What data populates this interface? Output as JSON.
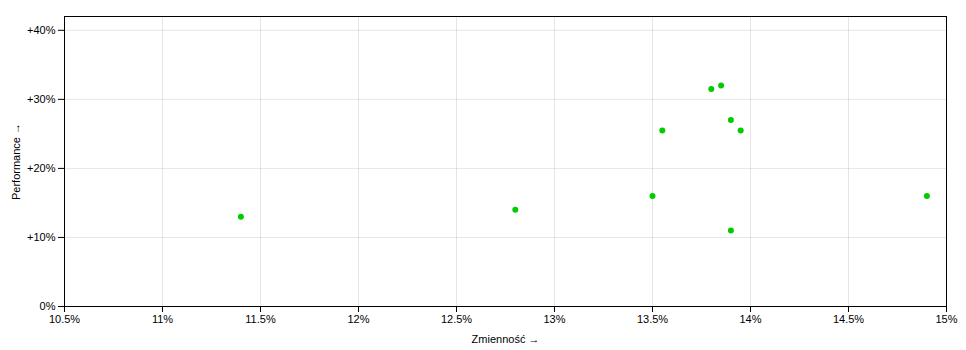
{
  "chart_data": {
    "type": "scatter",
    "x_label": "Zmienność",
    "y_label": "Performance",
    "x": [
      0.114,
      0.128,
      0.135,
      0.1355,
      0.138,
      0.1385,
      0.139,
      0.1395,
      0.139,
      0.149
    ],
    "values": [
      0.13,
      0.14,
      0.16,
      0.255,
      0.315,
      0.32,
      0.27,
      0.255,
      0.11,
      0.16
    ],
    "color": "#00cc00",
    "xlim": [
      0.105,
      0.15
    ],
    "ylim": [
      0.0,
      0.42
    ],
    "xticks": [
      {
        "value": 0.105,
        "label": "10.5%"
      },
      {
        "value": 0.11,
        "label": "11%"
      },
      {
        "value": 0.115,
        "label": "11.5%"
      },
      {
        "value": 0.12,
        "label": "12%"
      },
      {
        "value": 0.125,
        "label": "12.5%"
      },
      {
        "value": 0.13,
        "label": "13%"
      },
      {
        "value": 0.135,
        "label": "13.5%"
      },
      {
        "value": 0.14,
        "label": "14%"
      },
      {
        "value": 0.145,
        "label": "14.5%"
      },
      {
        "value": 0.15,
        "label": "15%"
      }
    ],
    "yticks": [
      {
        "value": 0.0,
        "label": "0%"
      },
      {
        "value": 0.1,
        "label": "+10%"
      },
      {
        "value": 0.2,
        "label": "+20%"
      },
      {
        "value": 0.3,
        "label": "+30%"
      },
      {
        "value": 0.4,
        "label": "+40%"
      }
    ],
    "grid": true
  }
}
